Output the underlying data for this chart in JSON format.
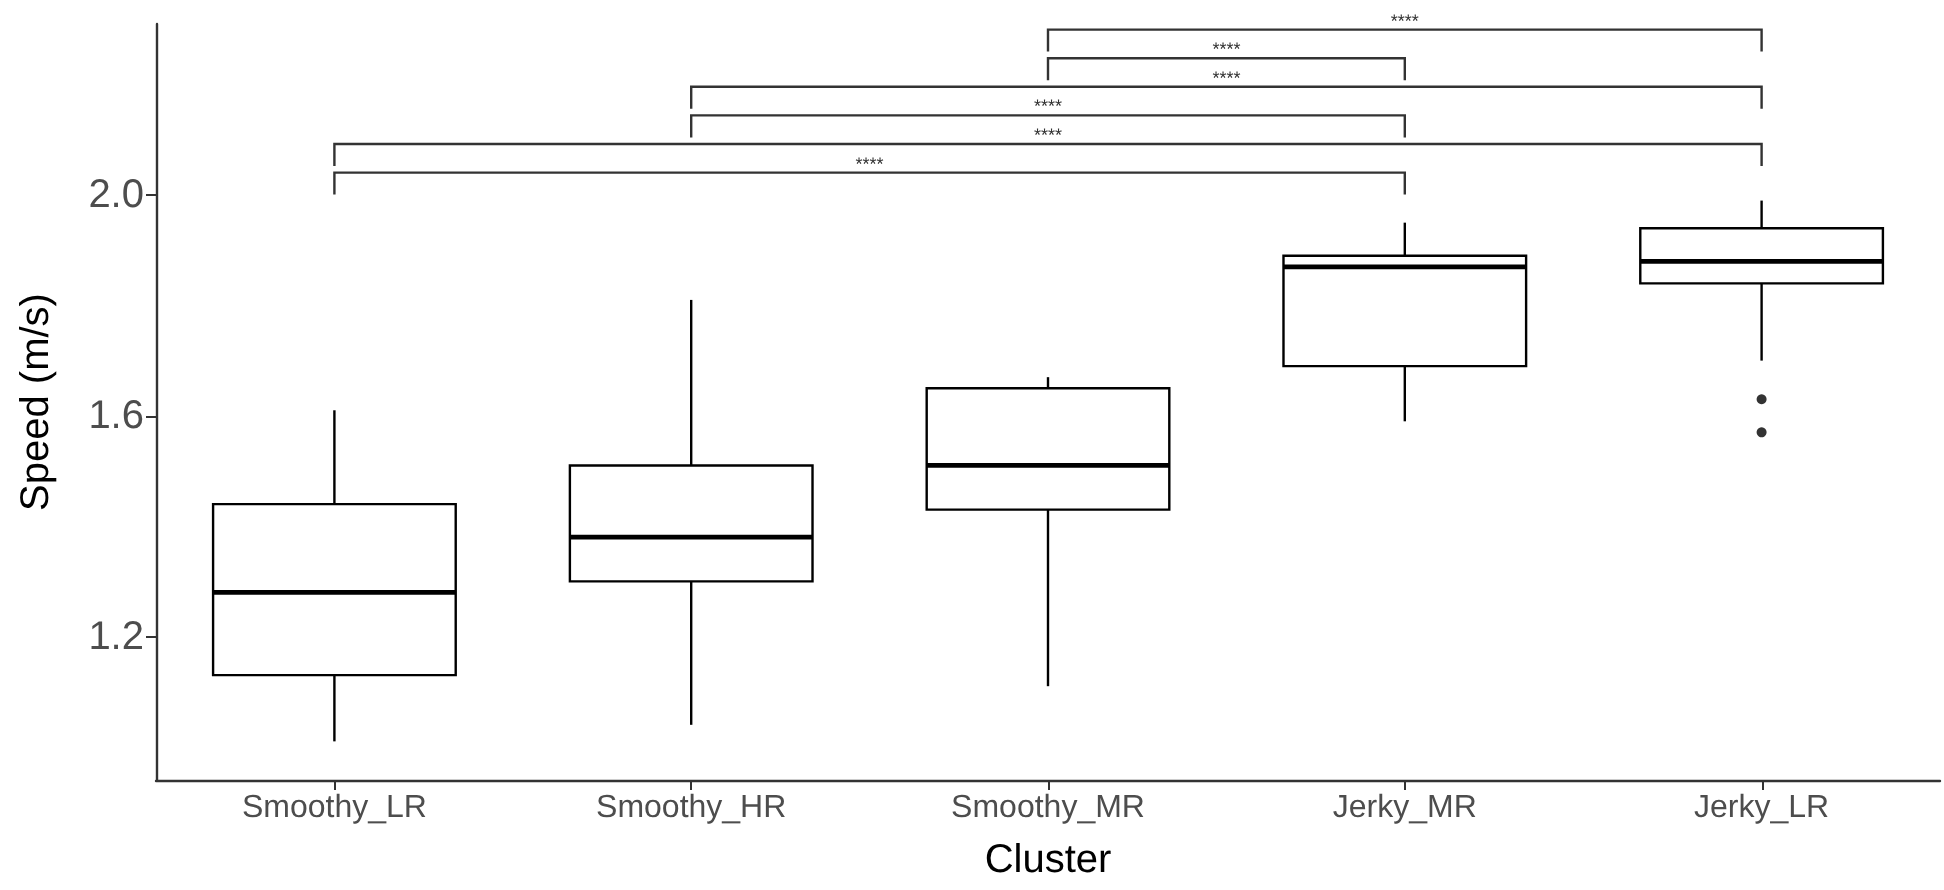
{
  "chart_data": {
    "type": "box",
    "xlabel": "Cluster",
    "ylabel": "Speed (m/s)",
    "categories": [
      "Smoothy_LR",
      "Smoothy_HR",
      "Smoothy_MR",
      "Jerky_MR",
      "Jerky_LR"
    ],
    "boxes": [
      {
        "low": 1.01,
        "q1": 1.13,
        "median": 1.28,
        "q3": 1.44,
        "high": 1.61
      },
      {
        "low": 1.04,
        "q1": 1.3,
        "median": 1.38,
        "q3": 1.51,
        "high": 1.81
      },
      {
        "low": 1.11,
        "q1": 1.43,
        "median": 1.51,
        "q3": 1.65,
        "high": 1.67
      },
      {
        "low": 1.59,
        "q1": 1.69,
        "median": 1.87,
        "q3": 1.89,
        "high": 1.95
      },
      {
        "low": 1.7,
        "q1": 1.84,
        "median": 1.88,
        "q3": 1.94,
        "high": 1.99,
        "outliers": [
          1.63,
          1.57
        ]
      }
    ],
    "color": "#000000",
    "ylim": [
      0.94,
      2.31
    ],
    "yticks": [
      1.2,
      1.6,
      {
        "value": 2,
        "label": "2.0"
      }
    ],
    "grid": false,
    "annotations": [
      "****",
      "****",
      "****",
      "****",
      "****",
      "****"
    ]
  }
}
